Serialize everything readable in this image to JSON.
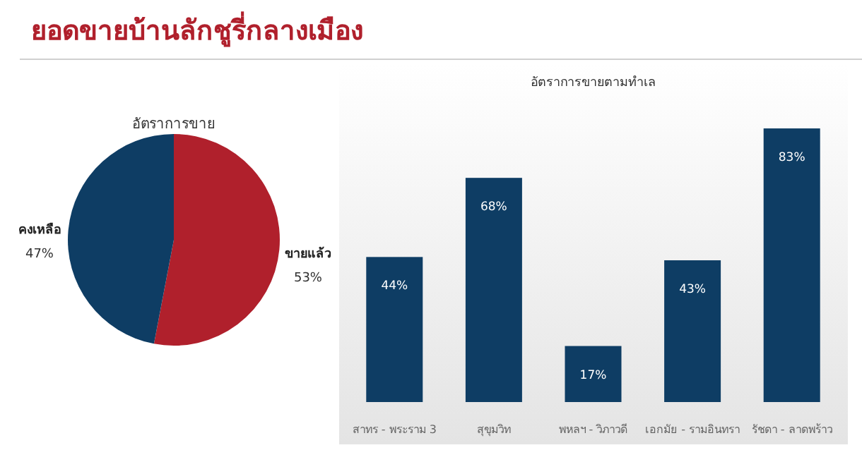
{
  "chart_data": [
    {
      "type": "other",
      "title": "ยอดขายบ้านลักชูรี่กลางเมือง"
    },
    {
      "type": "pie",
      "title": "อัตราการขาย",
      "categories": [
        "ขายแล้ว",
        "คงเหลือ"
      ],
      "values": [
        53,
        47
      ],
      "colors": [
        "#b0202c",
        "#0e3d64"
      ],
      "value_labels": [
        "53%",
        "47%"
      ]
    },
    {
      "type": "bar",
      "title": "อัตราการขายตามทำเล",
      "categories": [
        "สาทร - พระราม 3",
        "สุขุมวิท",
        "พหลฯ - วิภาวดี",
        "เอกมัย - รามอินทรา",
        "รัชดา - ลาดพร้าว"
      ],
      "values": [
        44,
        68,
        17,
        43,
        83
      ],
      "color": "#0e3d64",
      "value_labels": [
        "44%",
        "68%",
        "17%",
        "43%",
        "83%"
      ]
    }
  ]
}
